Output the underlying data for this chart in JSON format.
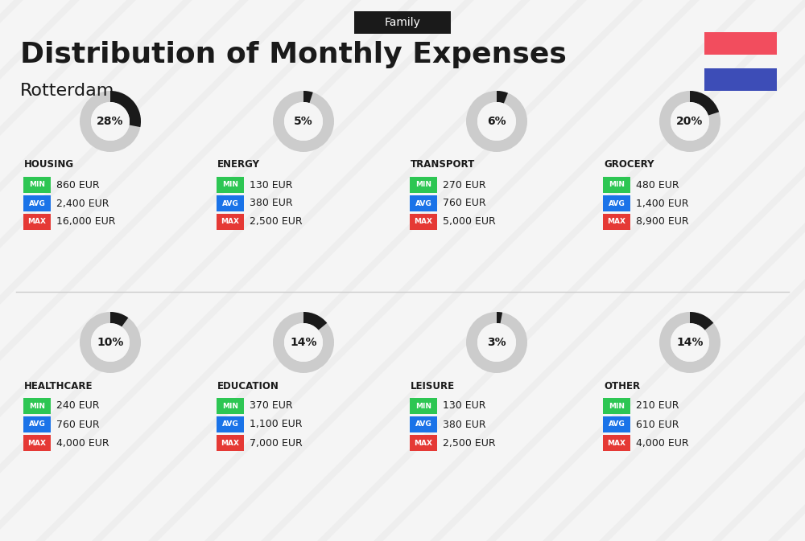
{
  "title": "Distribution of Monthly Expenses",
  "subtitle": "Rotterdam",
  "tag": "Family",
  "bg_color": "#f5f5f5",
  "flag_red": "#f24d5e",
  "flag_blue": "#3d4db7",
  "categories": [
    {
      "name": "HOUSING",
      "percent": 28,
      "min": "860 EUR",
      "avg": "2,400 EUR",
      "max": "16,000 EUR",
      "row": 0,
      "col": 0
    },
    {
      "name": "ENERGY",
      "percent": 5,
      "min": "130 EUR",
      "avg": "380 EUR",
      "max": "2,500 EUR",
      "row": 0,
      "col": 1
    },
    {
      "name": "TRANSPORT",
      "percent": 6,
      "min": "270 EUR",
      "avg": "760 EUR",
      "max": "5,000 EUR",
      "row": 0,
      "col": 2
    },
    {
      "name": "GROCERY",
      "percent": 20,
      "min": "480 EUR",
      "avg": "1,400 EUR",
      "max": "8,900 EUR",
      "row": 0,
      "col": 3
    },
    {
      "name": "HEALTHCARE",
      "percent": 10,
      "min": "240 EUR",
      "avg": "760 EUR",
      "max": "4,000 EUR",
      "row": 1,
      "col": 0
    },
    {
      "name": "EDUCATION",
      "percent": 14,
      "min": "370 EUR",
      "avg": "1,100 EUR",
      "max": "7,000 EUR",
      "row": 1,
      "col": 1
    },
    {
      "name": "LEISURE",
      "percent": 3,
      "min": "130 EUR",
      "avg": "380 EUR",
      "max": "2,500 EUR",
      "row": 1,
      "col": 2
    },
    {
      "name": "OTHER",
      "percent": 14,
      "min": "210 EUR",
      "avg": "610 EUR",
      "max": "4,000 EUR",
      "row": 1,
      "col": 3
    }
  ],
  "min_color": "#2dc653",
  "avg_color": "#1a73e8",
  "max_color": "#e53935",
  "label_text_color": "#ffffff",
  "value_text_color": "#1a1a1a",
  "cat_name_color": "#1a1a1a",
  "ring_bg_color": "#cccccc",
  "ring_fg_color": "#1a1a1a",
  "diagonal_stripe_color": "#e8e8e8"
}
